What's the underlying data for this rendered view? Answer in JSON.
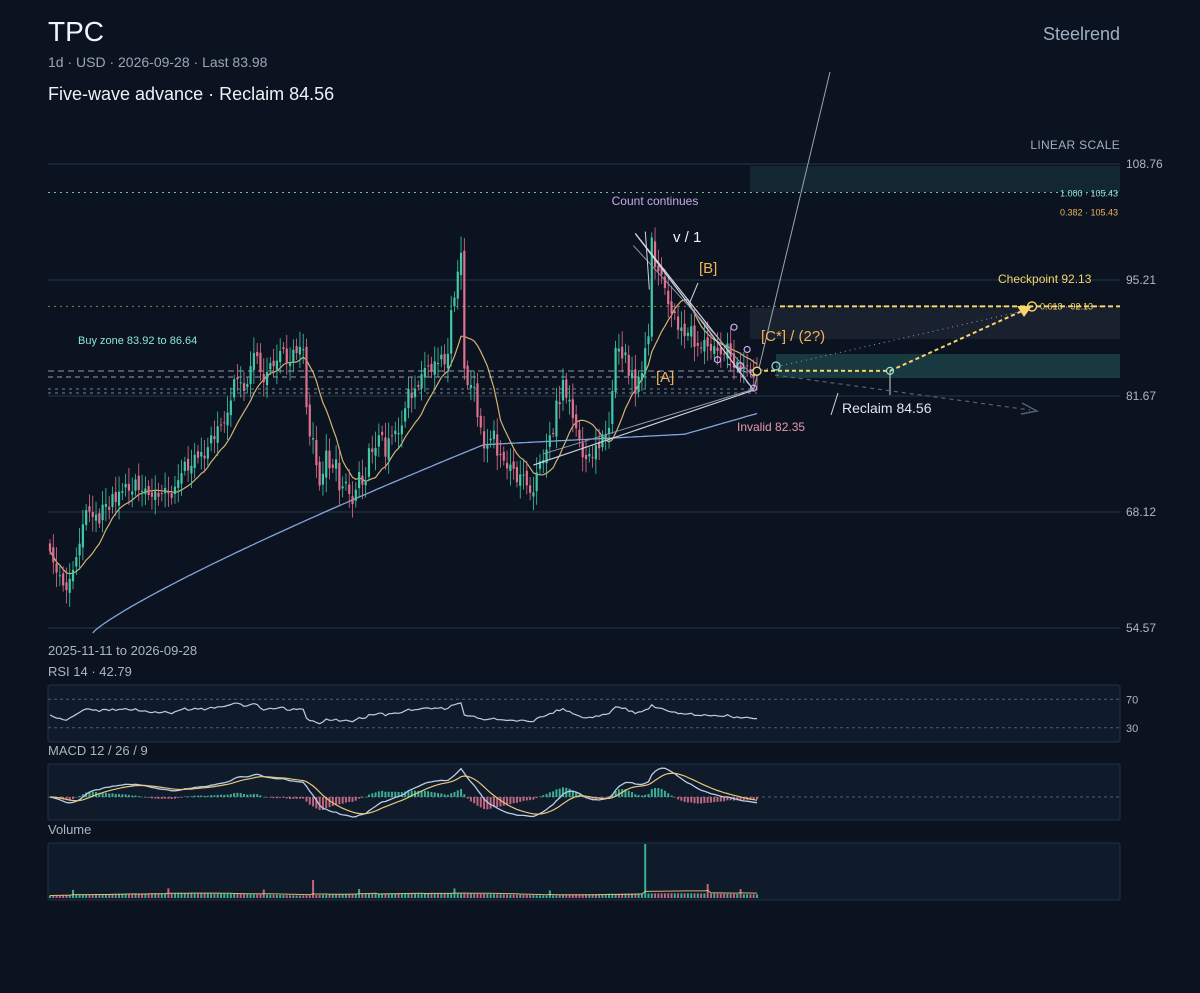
{
  "header": {
    "ticker": "TPC",
    "subtitle": "1d · USD · 2026-09-28 · Last 83.98",
    "headline": "Five-wave advance · Reclaim 84.56",
    "brand": "Steelrend",
    "scale_label": "LINEAR SCALE",
    "date_range": "2025-11-11 to 2026-09-28"
  },
  "colors": {
    "background": "#0b1220",
    "up": "#3fc9a6",
    "down": "#e0718d",
    "ma_fast": "#e8c77a",
    "ma_slow": "#8fb7f0",
    "accent_purple": "#c9a9e8",
    "accent_orange": "#f0b45a",
    "dotted_yellow": "#f5d56c",
    "teal": "#8ee6cf"
  },
  "chart_data": {
    "type": "candlestick",
    "start": "2025-11-11",
    "end": "2026-09-28",
    "last": 83.98,
    "y_ticks": [
      108.76,
      95.21,
      81.67,
      68.12,
      54.57
    ],
    "ylim": [
      54.57,
      108.76
    ],
    "closes": [
      63.55,
      62.24,
      61.05,
      60.73,
      59.54,
      58.99,
      60.31,
      61.36,
      62.86,
      64.42,
      66.68,
      68.34,
      68.17,
      67.54,
      67.82,
      66.78,
      68.98,
      69.06,
      68.37,
      70.21,
      69.28,
      70.49,
      70.54,
      71.39,
      70.6,
      70.51,
      71.92,
      70.67,
      70.58,
      70.86,
      70.1,
      69.89,
      70.54,
      69.9,
      70.21,
      70.93,
      70.29,
      69.77,
      71.08,
      71.83,
      72.65,
      73.99,
      72.96,
      73.51,
      74.8,
      74.45,
      75.13,
      74.38,
      75.69,
      77.06,
      76.63,
      78.13,
      78.21,
      78.52,
      79.73,
      81.14,
      83.63,
      83.61,
      83.26,
      82.26,
      83.08,
      85.16,
      86.69,
      86.31,
      84.46,
      83.29,
      84.46,
      85.52,
      85.15,
      85.78,
      86.93,
      87.15,
      85.61,
      85.47,
      87.06,
      86.69,
      87.4,
      87.13,
      80.35,
      76.94,
      76.75,
      73.57,
      71.2,
      72.59,
      75.29,
      73.21,
      73.28,
      74.27,
      70.66,
      71.11,
      71.65,
      70.23,
      69.04,
      70.72,
      72.79,
      71.31,
      71.78,
      75.57,
      75.13,
      75.61,
      77.08,
      77.1,
      74.58,
      76.72,
      76.96,
      77.61,
      77.33,
      78.23,
      80.23,
      82.49,
      81.42,
      82.52,
      82.74,
      84.21,
      84.94,
      85.12,
      84.5,
      85.7,
      85.52,
      86.49,
      85.37,
      86.59,
      91.7,
      93.17,
      96.19,
      98.4,
      84.87,
      82.94,
      82.95,
      82.74,
      79.2,
      77.99,
      75.55,
      76.03,
      76.69,
      77.62,
      74.7,
      74.76,
      74.12,
      73.22,
      73.65,
      73.16,
      71.6,
      72.51,
      72.48,
      71.23,
      70.37,
      70.42,
      72.75,
      74.03,
      74.17,
      75.4,
      77.08,
      77.31,
      81.13,
      80.71,
      83.54,
      81.47,
      81.23,
      79.07,
      77.89,
      76.61,
      74.51,
      74.29,
      74.9,
      74.5,
      75.91,
      75.56,
      77.14,
      77.21,
      77.94,
      82.25,
      87.29,
      87.19,
      86.06,
      86.76,
      84.02,
      84.41,
      81.94,
      83.94,
      84.34,
      87.25,
      88.63,
      100.17,
      96.74,
      96.25,
      95.86,
      94.28,
      92.38,
      91.3,
      91.35,
      89.4,
      89.67,
      88.66,
      89.05,
      89.81,
      87.42,
      87.53,
      87.25,
      88.22,
      87.45,
      86.95,
      87.5,
      86.93,
      86.52,
      86.5,
      87.8,
      86.2,
      84.99,
      85.66,
      84.62,
      84.9,
      85.13,
      84.5,
      83.97,
      83.98
    ],
    "ma_fast_label": "",
    "ma_slow_label": "",
    "levels": [
      {
        "label": "1.000 · 105.43",
        "value": 105.43,
        "color": "#8ee6cf"
      },
      {
        "label": "0.382 · 105.43",
        "value": 105.43,
        "color": "#f0b45a"
      },
      {
        "label": "0.618 · 92.13",
        "value": 92.13,
        "color": "#f5d56c"
      }
    ],
    "annotations": {
      "count_continues": "Count continues",
      "wave_v1": "v / 1",
      "wave_b": "[B]",
      "wave_a": "[A]",
      "wave_c2": "[C*] / (2?)",
      "checkpoint": "Checkpoint 92.13",
      "buy_zone": "Buy zone 83.92 to 86.64",
      "reclaim": "Reclaim 84.56",
      "invalid": "Invalid 82.35"
    },
    "rsi": {
      "label": "RSI 14 · 42.79",
      "value": 42.79,
      "levels": [
        70,
        30
      ]
    },
    "macd": {
      "label": "MACD 12 / 26 / 9"
    },
    "volume": {
      "label": "Volume"
    }
  }
}
